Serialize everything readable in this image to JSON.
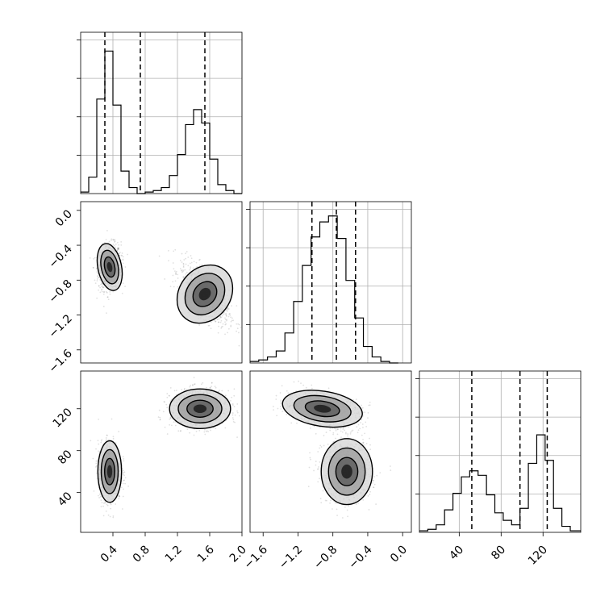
{
  "chart_data": {
    "type": "corner",
    "parameters": [
      {
        "range": [
          0.0,
          2.0
        ],
        "ticks": [
          "0.4",
          "0.8",
          "1.2",
          "1.6",
          "2.0"
        ],
        "tick_values": [
          0.4,
          0.8,
          1.2,
          1.6,
          2.0
        ]
      },
      {
        "range": [
          -1.75,
          0.1
        ],
        "ticks": [
          "−1.6",
          "−1.2",
          "−0.8",
          "−0.4",
          "0.0"
        ],
        "tick_values": [
          -1.6,
          -1.2,
          -0.8,
          -0.4,
          0.0
        ]
      },
      {
        "range": [
          2,
          156
        ],
        "ticks": [
          "40",
          "80",
          "120"
        ],
        "tick_values": [
          40,
          80,
          120
        ]
      }
    ],
    "histograms": [
      {
        "param": 0,
        "bin_edges": [
          0.0,
          0.1,
          0.2,
          0.3,
          0.4,
          0.5,
          0.6,
          0.7,
          0.8,
          0.9,
          1.0,
          1.1,
          1.2,
          1.3,
          1.4,
          1.5,
          1.6,
          1.7,
          1.8,
          1.9,
          2.0
        ],
        "values": [
          0.01,
          0.11,
          0.63,
          0.95,
          0.59,
          0.15,
          0.04,
          0.0,
          0.01,
          0.02,
          0.04,
          0.12,
          0.26,
          0.46,
          0.56,
          0.47,
          0.23,
          0.06,
          0.02,
          0.0
        ],
        "quantiles": [
          0.3,
          0.74,
          1.54
        ]
      },
      {
        "param": 1,
        "bin_edges": [
          -1.75,
          -1.65,
          -1.55,
          -1.45,
          -1.35,
          -1.25,
          -1.15,
          -1.05,
          -0.95,
          -0.85,
          -0.75,
          -0.65,
          -0.55,
          -0.45,
          -0.35,
          -0.25,
          -0.15,
          -0.05
        ],
        "values": [
          0.01,
          0.02,
          0.04,
          0.08,
          0.2,
          0.41,
          0.65,
          0.84,
          0.94,
          0.98,
          0.83,
          0.55,
          0.3,
          0.11,
          0.04,
          0.01,
          0.0
        ],
        "quantiles": [
          -1.04,
          -0.76,
          -0.54
        ]
      },
      {
        "param": 2,
        "bin_edges": [
          2,
          10,
          18,
          26,
          34,
          42,
          50,
          58,
          66,
          74,
          82,
          90,
          98,
          106,
          114,
          122,
          130,
          138,
          146,
          156
        ],
        "values": [
          0.01,
          0.02,
          0.05,
          0.15,
          0.26,
          0.37,
          0.41,
          0.38,
          0.25,
          0.13,
          0.08,
          0.05,
          0.16,
          0.46,
          0.65,
          0.48,
          0.16,
          0.04,
          0.01
        ],
        "quantiles": [
          52,
          98,
          124
        ]
      }
    ],
    "joint": [
      {
        "x_param": 0,
        "y_param": 1,
        "modes": [
          {
            "x": 0.36,
            "y": -0.65
          },
          {
            "x": 1.54,
            "y": -0.96
          }
        ]
      },
      {
        "x_param": 0,
        "y_param": 2,
        "modes": [
          {
            "x": 0.36,
            "y": 60
          },
          {
            "x": 1.48,
            "y": 120
          }
        ]
      },
      {
        "x_param": 1,
        "y_param": 2,
        "modes": [
          {
            "x": -0.92,
            "y": 120
          },
          {
            "x": -0.64,
            "y": 60
          }
        ]
      }
    ]
  }
}
